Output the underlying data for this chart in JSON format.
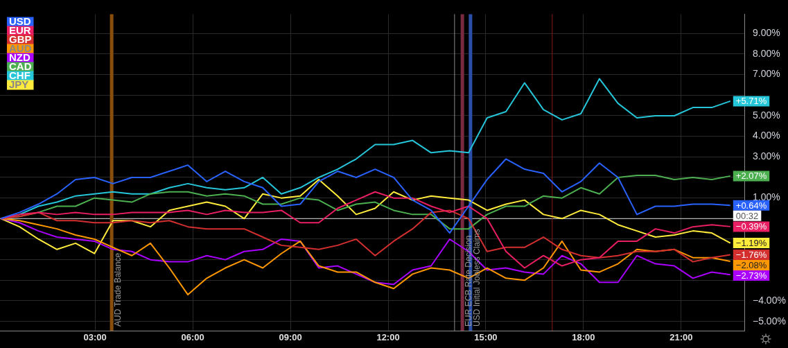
{
  "chart_data": {
    "type": "line",
    "x": [
      0.11,
      0.68,
      1.26,
      1.83,
      2.4,
      2.98,
      3.55,
      4.13,
      4.7,
      5.28,
      5.85,
      6.43,
      7.0,
      7.58,
      8.15,
      8.72,
      9.3,
      9.87,
      10.45,
      11.02,
      11.6,
      12.17,
      12.75,
      13.32,
      13.89,
      14.47,
      15.04,
      15.62,
      16.19,
      16.77,
      17.34,
      17.92,
      18.49,
      19.06,
      19.64,
      20.21,
      20.79,
      21.36,
      21.94,
      22.51
    ],
    "series": [
      {
        "name": "USD",
        "color": "#2962ff",
        "values": [
          0,
          0.3,
          0.7,
          1.2,
          1.9,
          2.0,
          1.7,
          2.0,
          2.0,
          2.3,
          2.6,
          1.8,
          2.3,
          1.8,
          1.5,
          0.6,
          0.7,
          1.8,
          2.3,
          2.0,
          2.4,
          2.0,
          0.9,
          0.4,
          -0.7,
          0.6,
          1.9,
          2.9,
          2.4,
          2.2,
          1.3,
          1.8,
          2.7,
          2.0,
          0.2,
          0.6,
          0.6,
          0.7,
          0.7,
          0.64
        ],
        "value_labels": [
          null,
          null,
          null,
          null,
          null,
          null,
          null,
          null,
          null,
          null,
          null,
          null,
          null,
          null,
          null,
          null,
          null,
          null,
          null,
          null,
          null,
          null,
          null,
          null,
          null,
          null,
          null,
          null,
          null,
          null,
          null,
          null,
          null,
          null,
          null,
          null,
          null,
          null,
          null,
          "+0.64%"
        ]
      },
      {
        "name": "EUR",
        "color": "#e91e63",
        "values": [
          0,
          0.2,
          0.3,
          0.2,
          0.3,
          0.2,
          0.2,
          0.3,
          0.3,
          0.3,
          0.4,
          0.2,
          0.4,
          0.3,
          0.3,
          0.4,
          -0.2,
          -0.2,
          0.5,
          0.9,
          1.3,
          1.0,
          1.0,
          0.6,
          0.3,
          0.6,
          0.0,
          -1.6,
          -2.4,
          -1.8,
          -2.3,
          -2.0,
          -1.9,
          -1.1,
          -1.1,
          -0.5,
          -0.7,
          -0.4,
          -0.3,
          -0.39
        ],
        "value_labels": [
          null,
          null,
          null,
          null,
          null,
          null,
          null,
          null,
          null,
          null,
          null,
          null,
          null,
          null,
          null,
          null,
          null,
          null,
          null,
          null,
          null,
          null,
          null,
          null,
          null,
          null,
          null,
          null,
          null,
          null,
          null,
          null,
          null,
          null,
          null,
          null,
          null,
          null,
          null,
          "−0.39%"
        ]
      },
      {
        "name": "GBP",
        "color": "#d32f2f",
        "values": [
          0,
          0.1,
          0.3,
          -0.1,
          -0.1,
          -0.2,
          -0.2,
          -0.1,
          -0.2,
          -0.1,
          -0.4,
          -0.5,
          -0.5,
          -0.5,
          -0.9,
          -1.3,
          -1.4,
          -1.5,
          -1.3,
          -1.0,
          -1.8,
          -1.1,
          -0.5,
          0.3,
          0.4,
          0.0,
          -1.6,
          -1.4,
          -1.4,
          -0.9,
          -1.5,
          -1.8,
          -1.9,
          -1.8,
          -1.6,
          -1.6,
          -1.5,
          -2.1,
          -1.9,
          -1.76
        ],
        "value_labels": [
          null,
          null,
          null,
          null,
          null,
          null,
          null,
          null,
          null,
          null,
          null,
          null,
          null,
          null,
          null,
          null,
          null,
          null,
          null,
          null,
          null,
          null,
          null,
          null,
          null,
          null,
          null,
          null,
          null,
          null,
          null,
          null,
          null,
          null,
          null,
          null,
          null,
          null,
          null,
          "−1.76%"
        ]
      },
      {
        "name": "AUD",
        "color": "#ff9800",
        "values": [
          0,
          -0.1,
          -0.3,
          -0.5,
          -0.8,
          -1.0,
          -1.4,
          -1.8,
          -1.2,
          -2.4,
          -3.7,
          -2.9,
          -2.4,
          -2.0,
          -2.4,
          -1.7,
          -1.1,
          -2.3,
          -2.6,
          -2.6,
          -3.1,
          -3.4,
          -2.7,
          -2.4,
          -2.5,
          -2.9,
          -2.4,
          -2.9,
          -3.0,
          -2.4,
          -1.1,
          -2.5,
          -2.6,
          -2.2,
          -1.5,
          -1.6,
          -1.5,
          -1.9,
          -1.9,
          -2.08
        ],
        "value_labels": [
          null,
          null,
          null,
          null,
          null,
          null,
          null,
          null,
          null,
          null,
          null,
          null,
          null,
          null,
          null,
          null,
          null,
          null,
          null,
          null,
          null,
          null,
          null,
          null,
          null,
          null,
          null,
          null,
          null,
          null,
          null,
          null,
          null,
          null,
          null,
          null,
          null,
          null,
          null,
          "−2.08%"
        ]
      },
      {
        "name": "NZD",
        "color": "#aa00ff",
        "values": [
          0,
          -0.2,
          -0.6,
          -0.9,
          -1.0,
          -1.1,
          -1.5,
          -1.6,
          -2.0,
          -2.1,
          -2.1,
          -1.8,
          -2.0,
          -1.6,
          -1.5,
          -1.0,
          -1.1,
          -2.4,
          -2.3,
          -2.7,
          -3.1,
          -3.2,
          -2.5,
          -2.3,
          -1.0,
          -1.6,
          -2.5,
          -2.4,
          -2.6,
          -2.7,
          -1.8,
          -2.2,
          -3.1,
          -3.1,
          -1.8,
          -2.2,
          -2.3,
          -2.9,
          -2.6,
          -2.73
        ],
        "value_labels": [
          null,
          null,
          null,
          null,
          null,
          null,
          null,
          null,
          null,
          null,
          null,
          null,
          null,
          null,
          null,
          null,
          null,
          null,
          null,
          null,
          null,
          null,
          null,
          null,
          null,
          null,
          null,
          null,
          null,
          null,
          null,
          null,
          null,
          null,
          null,
          null,
          null,
          null,
          null,
          "−2.73%"
        ]
      },
      {
        "name": "CAD",
        "color": "#4caf50",
        "values": [
          0,
          0.1,
          0.3,
          0.6,
          0.6,
          1.0,
          0.9,
          0.8,
          1.2,
          1.3,
          1.3,
          1.1,
          1.2,
          1.1,
          0.7,
          0.7,
          1.0,
          0.9,
          0.4,
          0.7,
          0.8,
          0.4,
          0.2,
          0.2,
          -0.5,
          -0.5,
          0.2,
          0.6,
          0.6,
          1.1,
          1.0,
          1.5,
          1.2,
          2.0,
          2.1,
          2.1,
          1.9,
          2.0,
          1.9,
          2.07
        ],
        "value_labels": [
          null,
          null,
          null,
          null,
          null,
          null,
          null,
          null,
          null,
          null,
          null,
          null,
          null,
          null,
          null,
          null,
          null,
          null,
          null,
          null,
          null,
          null,
          null,
          null,
          null,
          null,
          null,
          null,
          null,
          null,
          null,
          null,
          null,
          null,
          null,
          null,
          null,
          null,
          null,
          "+2.07%"
        ]
      },
      {
        "name": "CHF",
        "color": "#26c6da",
        "values": [
          0,
          0.2,
          0.6,
          0.8,
          1.1,
          1.2,
          1.3,
          1.2,
          1.2,
          1.5,
          1.7,
          1.5,
          1.4,
          1.5,
          2.0,
          1.2,
          1.5,
          2.0,
          2.4,
          2.9,
          3.6,
          3.6,
          3.8,
          3.2,
          3.3,
          3.2,
          4.9,
          5.2,
          6.6,
          5.3,
          4.8,
          5.1,
          6.8,
          5.6,
          4.9,
          5.0,
          5.0,
          5.4,
          5.4,
          5.71
        ],
        "value_labels": [
          null,
          null,
          null,
          null,
          null,
          null,
          null,
          null,
          null,
          null,
          null,
          null,
          null,
          null,
          null,
          null,
          null,
          null,
          null,
          null,
          null,
          null,
          null,
          null,
          null,
          null,
          null,
          null,
          null,
          null,
          null,
          null,
          null,
          null,
          null,
          null,
          null,
          null,
          null,
          "+5.71%"
        ]
      },
      {
        "name": "JPY",
        "color": "#ffeb3b",
        "values": [
          0,
          -0.4,
          -1.0,
          -1.5,
          -1.2,
          -1.7,
          -0.1,
          -0.1,
          -0.4,
          0.4,
          0.6,
          0.8,
          0.6,
          0.0,
          1.2,
          1.0,
          1.1,
          1.9,
          1.1,
          0.2,
          0.5,
          1.3,
          0.9,
          1.1,
          1.0,
          0.9,
          0.4,
          0.7,
          0.9,
          0.2,
          0.0,
          0.4,
          0.2,
          -0.3,
          -0.6,
          -0.9,
          -0.8,
          -0.6,
          -0.7,
          -1.19
        ],
        "value_labels": [
          null,
          null,
          null,
          null,
          null,
          null,
          null,
          null,
          null,
          null,
          null,
          null,
          null,
          null,
          null,
          null,
          null,
          null,
          null,
          null,
          null,
          null,
          null,
          null,
          null,
          null,
          null,
          null,
          null,
          null,
          null,
          null,
          null,
          null,
          null,
          null,
          null,
          null,
          null,
          "−1.19%"
        ]
      }
    ],
    "xlim": [
      0.08,
      22.94
    ],
    "xticks": [
      {
        "value": 3,
        "label": "03:00"
      },
      {
        "value": 6,
        "label": "06:00"
      },
      {
        "value": 9,
        "label": "09:00"
      },
      {
        "value": 12,
        "label": "12:00"
      },
      {
        "value": 15,
        "label": "15:00"
      },
      {
        "value": 18,
        "label": "18:00"
      },
      {
        "value": 21,
        "label": "21:00"
      }
    ],
    "ylim": [
      -5.45,
      9.94
    ],
    "yticks": [
      {
        "value": -5,
        "label": "−5.00%"
      },
      {
        "value": -4,
        "label": "−4.00%"
      },
      {
        "value": -3,
        "label": null
      },
      {
        "value": -2,
        "label": null
      },
      {
        "value": -1,
        "label": null
      },
      {
        "value": 0,
        "label": null
      },
      {
        "value": 1,
        "label": "1.00%"
      },
      {
        "value": 2,
        "label": null
      },
      {
        "value": 3,
        "label": "3.00%"
      },
      {
        "value": 4,
        "label": "4.00%"
      },
      {
        "value": 5,
        "label": "5.00%"
      },
      {
        "value": 6,
        "label": null
      },
      {
        "value": 7,
        "label": "7.00%"
      },
      {
        "value": 8,
        "label": "8.00%"
      },
      {
        "value": 9,
        "label": "9.00%"
      }
    ],
    "ref_lines": [
      {
        "axis": "y",
        "value": 0,
        "color": "#d9d9d9"
      },
      {
        "axis": "x",
        "value": 3.51,
        "label": "AUD Trade Balance",
        "color": "#8a4e0c"
      },
      {
        "axis": "x",
        "value": 14.04,
        "color": "#8c8c8c"
      },
      {
        "axis": "x",
        "value": 14.28,
        "label": "EUR ECB Rate Decision",
        "color": "#7a2a40"
      },
      {
        "axis": "x",
        "value": 14.53,
        "label": "USD Initial Jobless Claims",
        "color": "#2a4fa8"
      },
      {
        "axis": "x",
        "value": 17.04,
        "color": "#8b1a1a"
      }
    ],
    "annotations": [
      {
        "text": "00:32",
        "x": 22.51,
        "y": 0.64
      }
    ],
    "grid": true,
    "legend": "top left",
    "marker": "none",
    "line_style": "solid"
  }
}
